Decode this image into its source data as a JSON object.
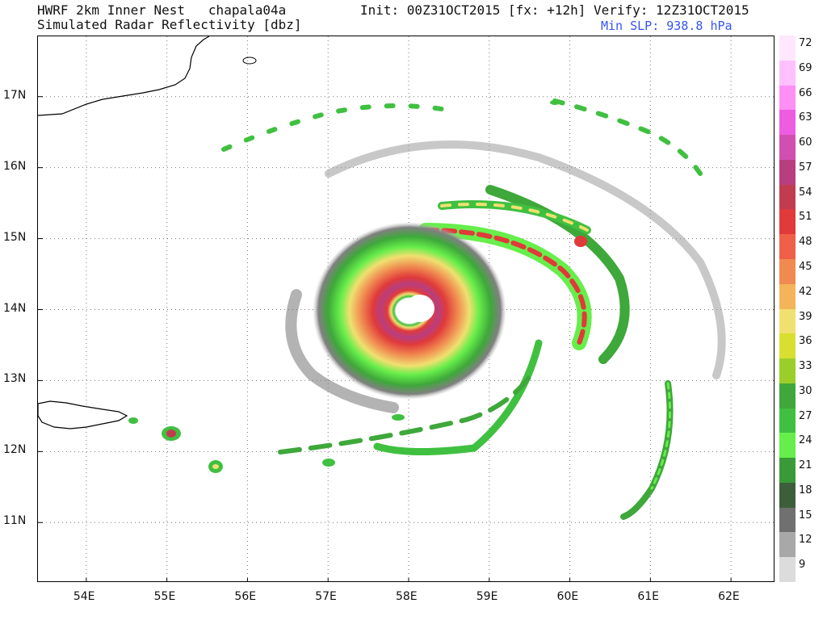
{
  "header": {
    "line1_left": "HWRF 2km Inner Nest   chapala04a",
    "line1_right": "Init: 00Z31OCT2015 [fx: +12h] Verify: 12Z31OCT2015",
    "line2_left": "Simulated Radar Reflectivity [dbz]",
    "min_slp": "Min SLP: 938.8 hPa"
  },
  "map": {
    "lon_range": [
      53.4,
      62.55
    ],
    "lat_range": [
      10.15,
      17.85
    ],
    "lon_ticks": [
      "54E",
      "55E",
      "56E",
      "57E",
      "58E",
      "59E",
      "60E",
      "61E",
      "62E"
    ],
    "lat_ticks": [
      "17N",
      "16N",
      "15N",
      "14N",
      "13N",
      "12N",
      "11N"
    ],
    "storm_center": {
      "lon": 58.15,
      "lat": 14.05
    },
    "grid": "dotted"
  },
  "colorbar": {
    "labels": [
      "72",
      "69",
      "66",
      "63",
      "60",
      "57",
      "54",
      "51",
      "48",
      "45",
      "42",
      "39",
      "36",
      "33",
      "30",
      "27",
      "24",
      "21",
      "18",
      "15",
      "12",
      "9"
    ],
    "colors": [
      "#ffe8ff",
      "#ffc0ff",
      "#ff8ef5",
      "#ee5ce0",
      "#d04fb0",
      "#b83e80",
      "#c23c50",
      "#e03a3a",
      "#f06048",
      "#f08a50",
      "#f4b45a",
      "#f0e070",
      "#d8df30",
      "#9cce2a",
      "#3ea83a",
      "#40c040",
      "#66ee4a",
      "#3a9a38",
      "#3d5e3a",
      "#707070",
      "#a8a8a8",
      "#dcdcdc"
    ]
  }
}
